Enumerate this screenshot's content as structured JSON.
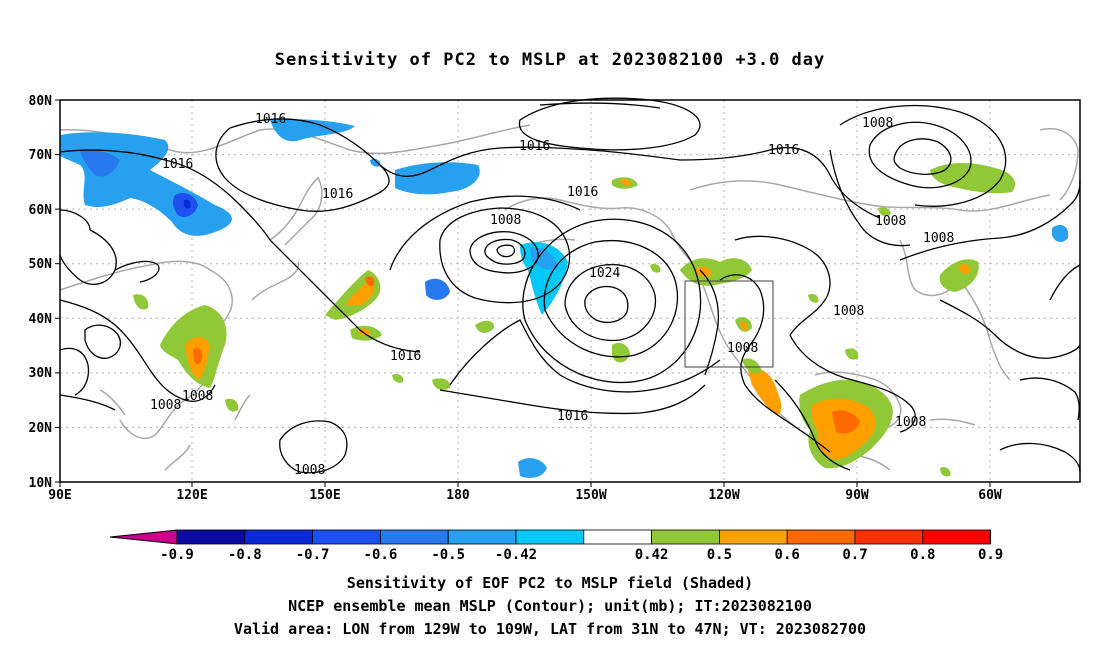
{
  "title": "Sensitivity of PC2 to MSLP at 2023082100 +3.0 day",
  "lat_ticks": [
    "80N",
    "70N",
    "60N",
    "50N",
    "40N",
    "30N",
    "20N",
    "10N"
  ],
  "lon_ticks": [
    "90E",
    "120E",
    "150E",
    "180",
    "150W",
    "120W",
    "90W",
    "60W"
  ],
  "contour_labels": [
    {
      "text": "1016"
    },
    {
      "text": "1016"
    },
    {
      "text": "1016"
    },
    {
      "text": "1016"
    },
    {
      "text": "1016"
    },
    {
      "text": "1016"
    },
    {
      "text": "1016"
    },
    {
      "text": "1016"
    },
    {
      "text": "1008"
    },
    {
      "text": "1024"
    },
    {
      "text": "1008"
    },
    {
      "text": "1008"
    },
    {
      "text": "1008"
    },
    {
      "text": "1008"
    },
    {
      "text": "1008"
    },
    {
      "text": "1008"
    },
    {
      "text": "1008"
    },
    {
      "text": "1008"
    }
  ],
  "colorbar": {
    "labels": [
      "-0.9",
      "-0.8",
      "-0.7",
      "-0.6",
      "-0.5",
      "-0.42",
      "0.42",
      "0.5",
      "0.6",
      "0.7",
      "0.8",
      "0.9"
    ],
    "colors": [
      "#0a0aa0",
      "#0a28d8",
      "#1e50f0",
      "#2878f0",
      "#28a0f0",
      "#00c8f8",
      "#ffffff",
      "#90c838",
      "#ffa000",
      "#ff6a00",
      "#ff3000",
      "#ff0000"
    ],
    "left_tip_color": "#c8008c",
    "right_tip_color": "#f5a0c8"
  },
  "captions": {
    "line1": "Sensitivity of EOF PC2 to MSLP field (Shaded)",
    "line2": "NCEP ensemble mean MSLP (Contour); unit(mb); IT:2023082100",
    "line3": "Valid area: LON from 129W to 109W, LAT from 31N to 47N; VT: 2023082700"
  },
  "valid_area": {
    "lon_min": -129,
    "lon_max": -109,
    "lat_min": 31,
    "lat_max": 47
  }
}
